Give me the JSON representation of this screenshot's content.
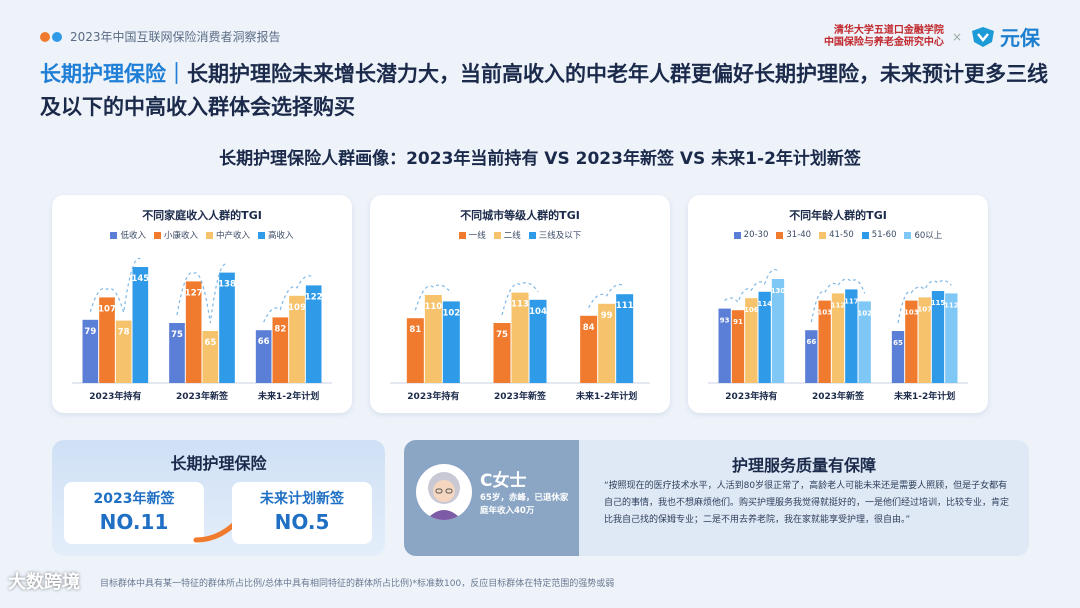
{
  "header": {
    "report_title": "2023年中国互联网保险消费者洞察报告",
    "brand_line1": "清华大学五道口金融学院",
    "brand_line2": "中国保险与养老金研究中心",
    "brand_x": "×",
    "brand_logo_text": "元保"
  },
  "headline": {
    "accent": "长期护理保险｜",
    "text": "长期护理险未来增长潜力大，当前高收入的中老年人群更偏好长期护理险，未来预计更多三线及以下的中高收入群体会选择购买"
  },
  "subtitle": "长期护理保险人群画像：2023年当前持有 VS 2023年新签 VS 未来1-2年计划新签",
  "chart_data": [
    {
      "type": "bar",
      "title": "不同家庭收入人群的TGI",
      "categories": [
        "2023年持有",
        "2023年新签",
        "未来1-2年计划"
      ],
      "series": [
        {
          "name": "低收入",
          "color": "#5b7fd6",
          "values": [
            79,
            75,
            66
          ]
        },
        {
          "name": "小康收入",
          "color": "#f07b2e",
          "values": [
            107,
            127,
            82
          ]
        },
        {
          "name": "中产收入",
          "color": "#f6c26b",
          "values": [
            78,
            65,
            109
          ]
        },
        {
          "name": "高收入",
          "color": "#2f9be8",
          "values": [
            145,
            138,
            122
          ]
        }
      ],
      "ylim": [
        0,
        160
      ]
    },
    {
      "type": "bar",
      "title": "不同城市等级人群的TGI",
      "categories": [
        "2023年持有",
        "2023年新签",
        "未来1-2年计划"
      ],
      "series": [
        {
          "name": "一线",
          "color": "#f07b2e",
          "values": [
            81,
            75,
            84
          ]
        },
        {
          "name": "二线",
          "color": "#f6c26b",
          "values": [
            110,
            113,
            99
          ]
        },
        {
          "name": "三线及以下",
          "color": "#2f9be8",
          "values": [
            102,
            104,
            111
          ]
        }
      ],
      "ylim": [
        0,
        160
      ]
    },
    {
      "type": "bar",
      "title": "不同年龄人群的TGI",
      "categories": [
        "2023年持有",
        "2023年新签",
        "未来1-2年计划"
      ],
      "series": [
        {
          "name": "20-30",
          "color": "#5b7fd6",
          "values": [
            93,
            66,
            65
          ]
        },
        {
          "name": "31-40",
          "color": "#f07b2e",
          "values": [
            91,
            103,
            103
          ]
        },
        {
          "name": "41-50",
          "color": "#f6c26b",
          "values": [
            106,
            112,
            107
          ]
        },
        {
          "name": "51-60",
          "color": "#2f9be8",
          "values": [
            114,
            117,
            115
          ]
        },
        {
          "name": "60以上",
          "color": "#7fc7f5",
          "values": [
            130,
            102,
            112
          ]
        }
      ],
      "ylim": [
        0,
        160
      ]
    }
  ],
  "ranking": {
    "title": "长期护理保险",
    "left_label": "2023年新签",
    "left_value": "NO.11",
    "right_label": "未来计划新签",
    "right_value": "NO.5"
  },
  "persona": {
    "name": "C女士",
    "desc": "65岁，赤峰，已退休家庭年收入40万",
    "service_title": "护理服务质量有保障",
    "quote": "“按照现在的医疗技术水平，人活到80岁很正常了，高龄老人可能未来还是需要人照顾，但是子女都有自己的事情，我也不想麻烦他们。购买护理服务我觉得就挺好的，一是他们经过培训，比较专业，肯定比我自己找的保姆专业；二是不用去养老院，我在家就能享受护理，很自由。”"
  },
  "footnote": "目标群体中具有某一特征的群体所占比例/总体中具有相同特征的群体所占比例)*标准数100，反应目标群体在特定范围的强势或弱",
  "watermark": "大数跨境",
  "colors": {
    "accent": "#1f7ed6",
    "dot1": "#f07b2e",
    "dot2": "#2f9be8"
  }
}
